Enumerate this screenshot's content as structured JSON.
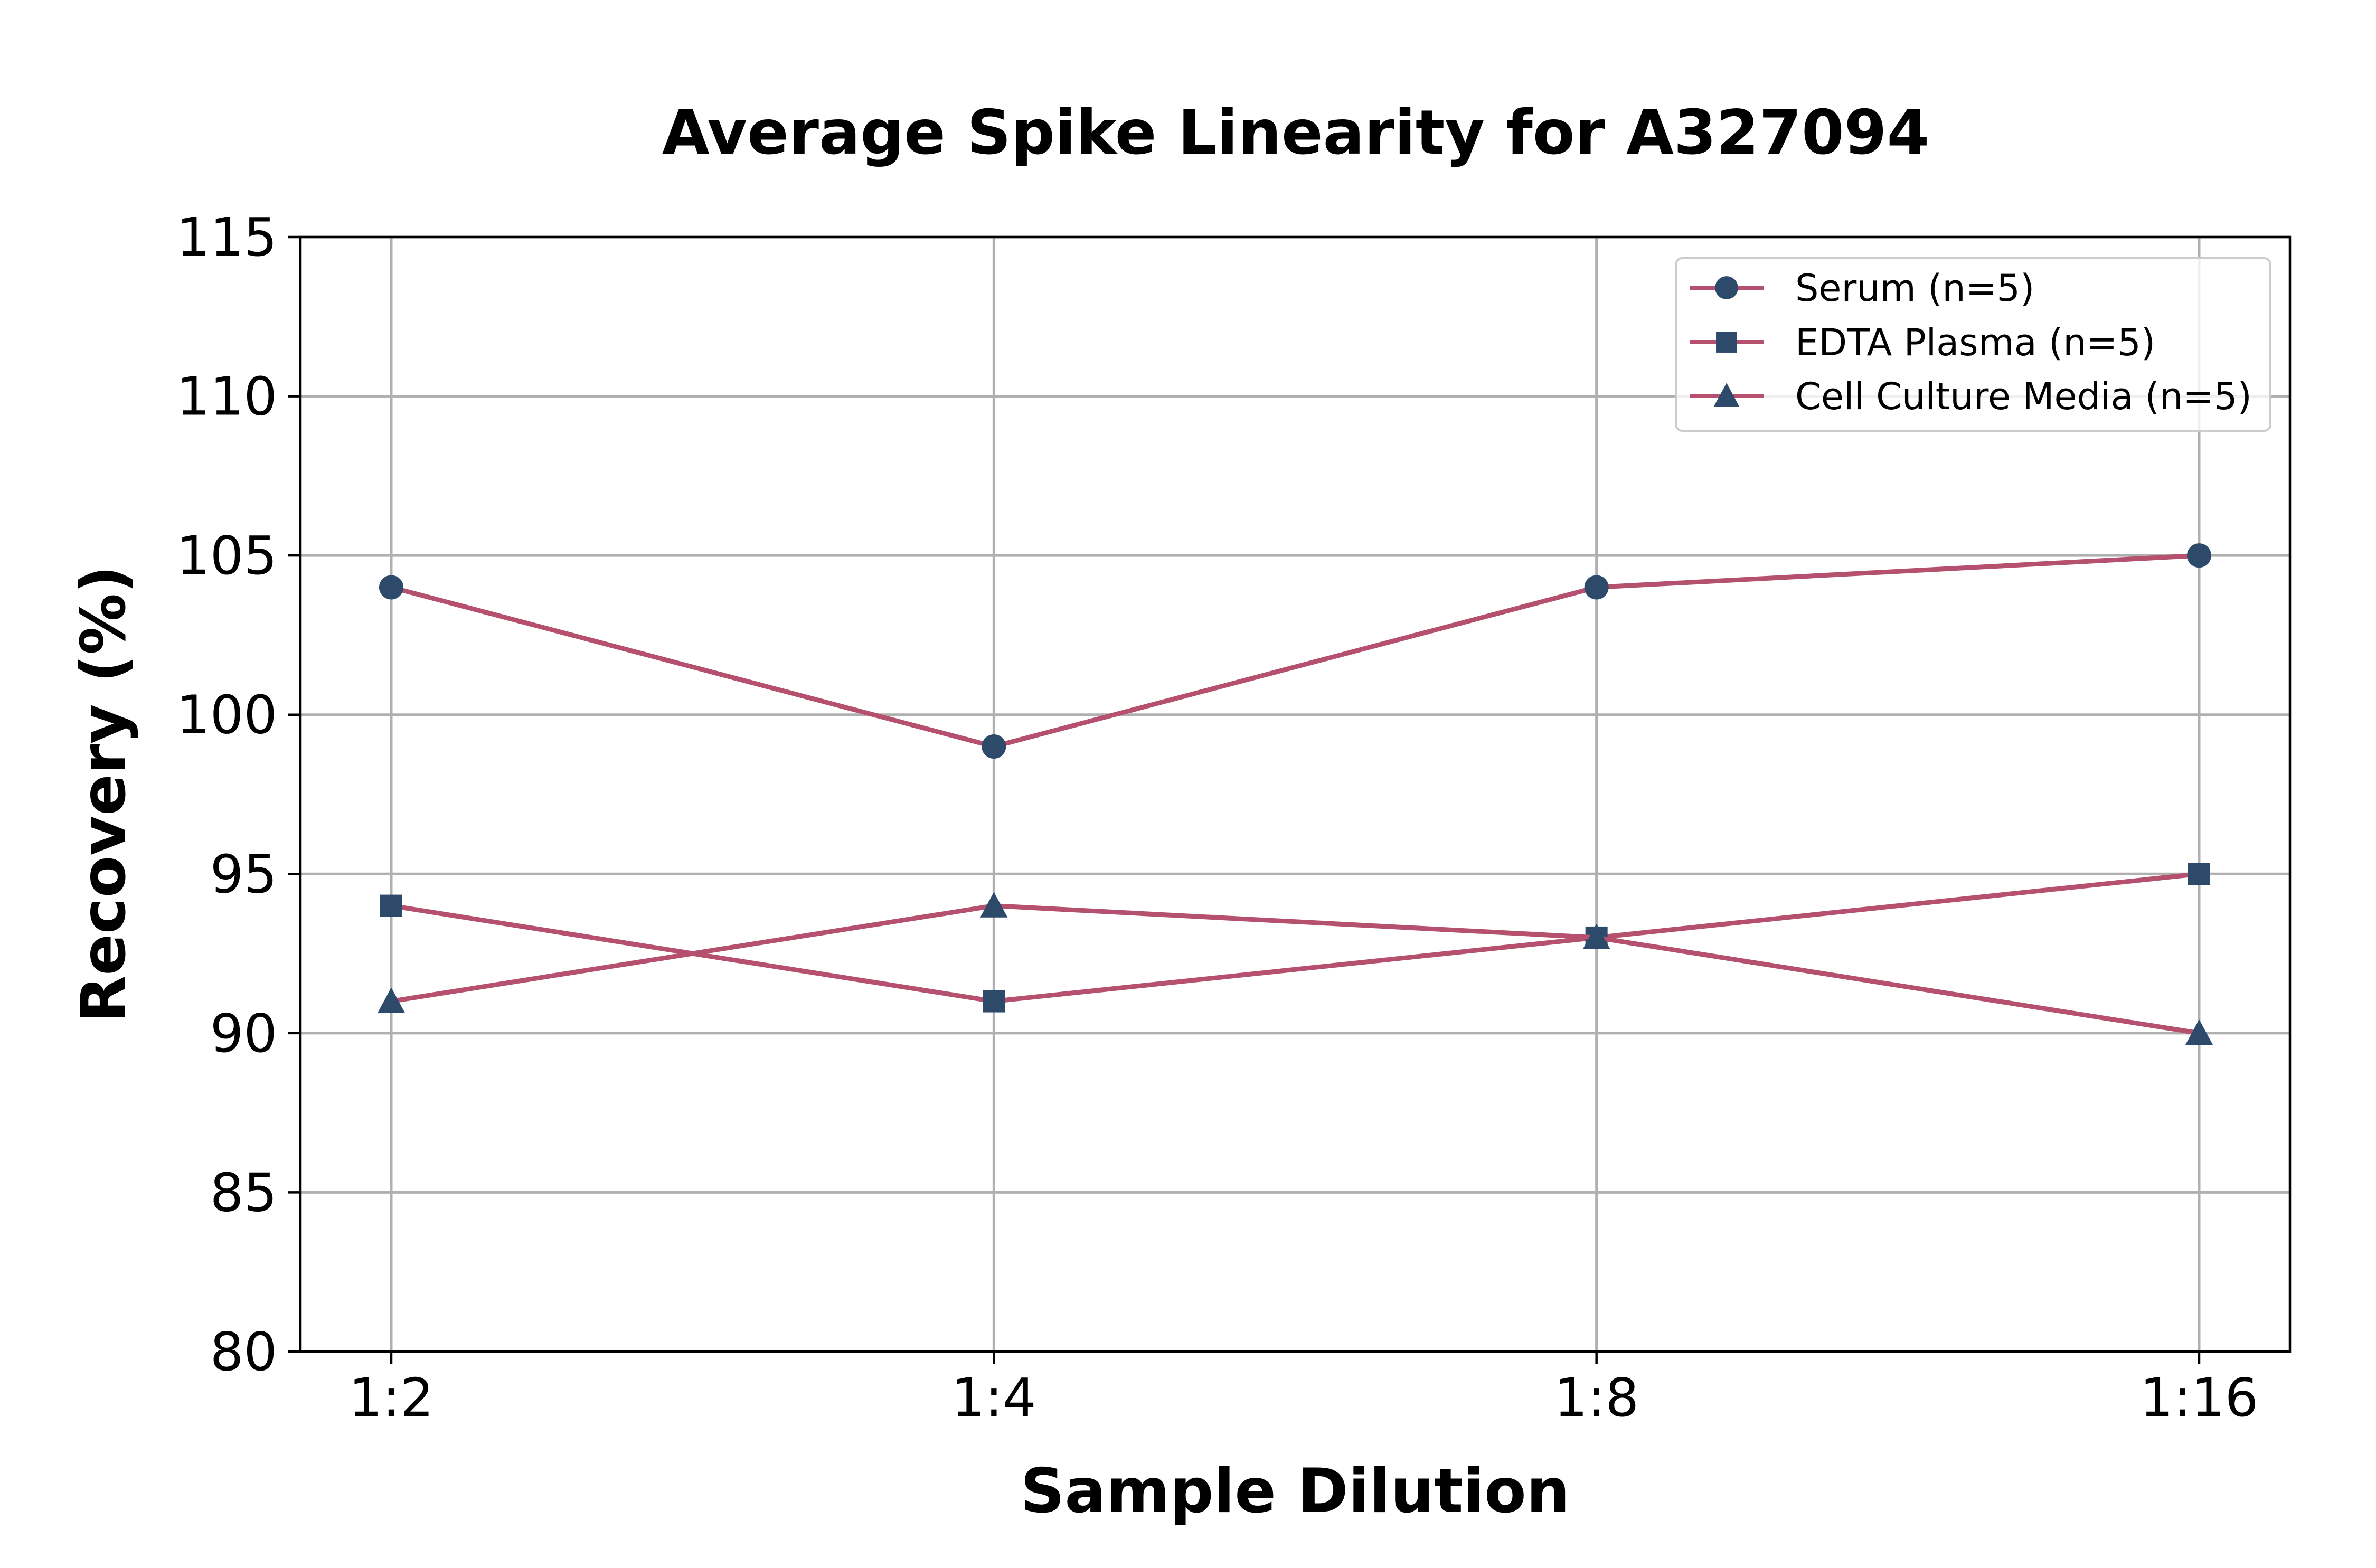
{
  "chart_data": {
    "type": "line",
    "title": "Average Spike Linearity for A327094",
    "xlabel": "Sample Dilution",
    "ylabel": "Recovery (%)",
    "categories": [
      "1:2",
      "1:4",
      "1:8",
      "1:16"
    ],
    "ylim": [
      80,
      115
    ],
    "yticks": [
      80,
      85,
      90,
      95,
      100,
      105,
      110,
      115
    ],
    "grid": true,
    "legend_position": "top-right",
    "line_color": "#b5506f",
    "marker_color": "#2d4a6b",
    "series": [
      {
        "name": "Serum (n=5)",
        "marker": "circle",
        "values": [
          104,
          99,
          104,
          105
        ]
      },
      {
        "name": "EDTA Plasma (n=5)",
        "marker": "square",
        "values": [
          94,
          91,
          93,
          95
        ]
      },
      {
        "name": "Cell Culture Media (n=5)",
        "marker": "triangle",
        "values": [
          91,
          94,
          93,
          90
        ]
      }
    ]
  }
}
